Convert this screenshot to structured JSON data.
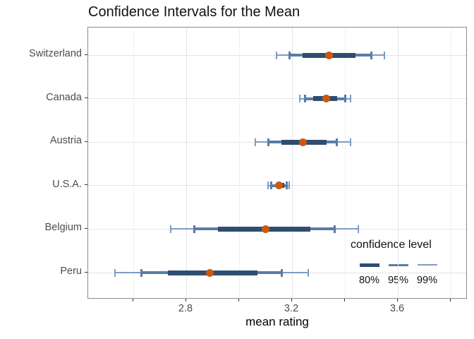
{
  "chart_data": {
    "type": "scatter",
    "subtype": "horizontal-interval-errorbar",
    "title": "Confidence Intervals for the Mean",
    "xlabel": "mean rating",
    "ylabel": "",
    "grid": true,
    "xlim": [
      2.43,
      3.86
    ],
    "xticks_major": [
      2.8,
      3.2,
      3.6
    ],
    "xtick_labels": [
      "2.8",
      "3.2",
      "3.6"
    ],
    "xticks_minor": [
      2.6,
      3.0,
      3.4,
      3.8
    ],
    "categories": [
      "Switzerland",
      "Canada",
      "Austria",
      "U.S.A.",
      "Belgium",
      "Peru"
    ],
    "series": [
      {
        "name": "Switzerland",
        "mean": 3.34,
        "ci80": [
          3.24,
          3.44
        ],
        "ci95": [
          3.19,
          3.5
        ],
        "ci99": [
          3.14,
          3.55
        ]
      },
      {
        "name": "Canada",
        "mean": 3.33,
        "ci80": [
          3.28,
          3.37
        ],
        "ci95": [
          3.25,
          3.4
        ],
        "ci99": [
          3.23,
          3.42
        ]
      },
      {
        "name": "Austria",
        "mean": 3.24,
        "ci80": [
          3.16,
          3.33
        ],
        "ci95": [
          3.11,
          3.37
        ],
        "ci99": [
          3.06,
          3.42
        ]
      },
      {
        "name": "U.S.A.",
        "mean": 3.15,
        "ci80": [
          3.14,
          3.17
        ],
        "ci95": [
          3.12,
          3.18
        ],
        "ci99": [
          3.11,
          3.19
        ]
      },
      {
        "name": "Belgium",
        "mean": 3.1,
        "ci80": [
          2.92,
          3.27
        ],
        "ci95": [
          2.83,
          3.36
        ],
        "ci99": [
          2.74,
          3.45
        ]
      },
      {
        "name": "Peru",
        "mean": 2.89,
        "ci80": [
          2.73,
          3.07
        ],
        "ci95": [
          2.63,
          3.16
        ],
        "ci99": [
          2.53,
          3.26
        ]
      }
    ],
    "legend": {
      "title": "confidence level",
      "entries": [
        "80%",
        "95%",
        "99%"
      ],
      "position": "inside bottom-right"
    },
    "colors": {
      "ci80": "#2f4d70",
      "ci95": "#5b7ca3",
      "ci99": "#7d9cc4",
      "mean_point": "#cb5811",
      "grid_major": "#e4e4e4",
      "grid_minor": "#f1f1f1",
      "panel_border": "#8a8a8a",
      "axis_text": "#4d4d4d"
    }
  }
}
